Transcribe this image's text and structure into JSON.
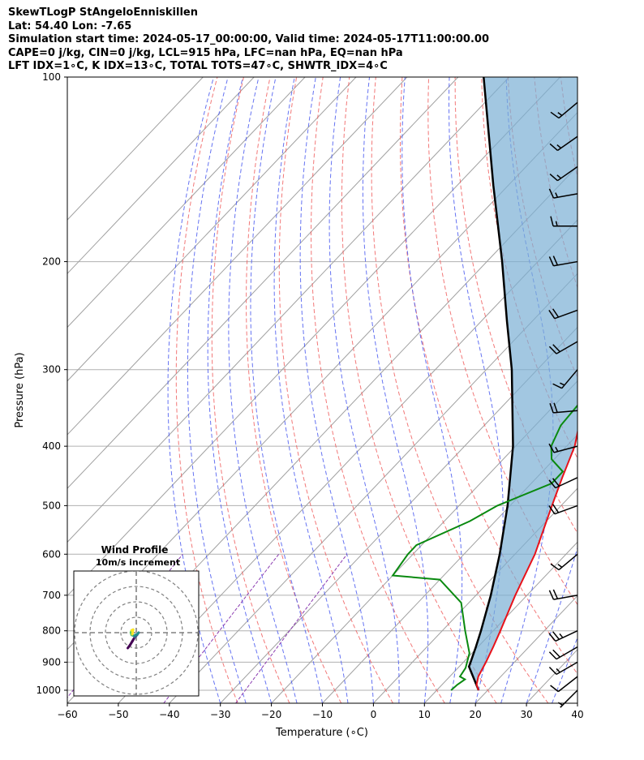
{
  "header": {
    "line1": "SkewTLogP StAngeloEnniskillen",
    "line2": "Lat: 54.40   Lon: -7.65",
    "line3": "Simulation start time: 2024-05-17_00:00:00, Valid time: 2024-05-17T11:00:00.00",
    "line4": "CAPE=0 j/kg, CIN=0 j/kg, LCL=915 hPa, LFC=nan hPa, EQ=nan hPa",
    "line5": "LFT IDX=1∘C, K IDX=13∘C, TOTAL TOTS=47∘C, SHWTR_IDX=4∘C"
  },
  "colors": {
    "temperature": "#e8121a",
    "dewpoint": "#0a8a10",
    "parcel": "#000000",
    "cape_fill": "#7bafd4",
    "dry_adiabat": "#f06060",
    "moist_adiabat": "#4a5af0",
    "isotherm": "#a0a0a0",
    "mixing_ratio": "#8a3ab0"
  },
  "chart_data": {
    "type": "line",
    "xlabel": "Temperature (∘C)",
    "ylabel": "Pressure (hPa)",
    "xlim": [
      -60,
      40
    ],
    "ylim": [
      1050,
      100
    ],
    "x_ticks": [
      -60,
      -50,
      -40,
      -30,
      -20,
      -10,
      0,
      10,
      20,
      30,
      40
    ],
    "y_ticks": [
      1000,
      900,
      800,
      700,
      600,
      500,
      400,
      300,
      200,
      100
    ],
    "grid": true,
    "series": [
      {
        "name": "temperature",
        "points": [
          [
            1000,
            18.2
          ],
          [
            980,
            16.8
          ],
          [
            950,
            15.6
          ],
          [
            925,
            15.0
          ],
          [
            900,
            14.4
          ],
          [
            850,
            13.0
          ],
          [
            800,
            11.4
          ],
          [
            700,
            7.7
          ],
          [
            600,
            3.9
          ],
          [
            500,
            -1.8
          ],
          [
            450,
            -5.0
          ],
          [
            400,
            -8.4
          ],
          [
            350,
            -13.6
          ],
          [
            300,
            -18.5
          ],
          [
            275,
            -21.0
          ],
          [
            260,
            -23.5
          ],
          [
            240,
            -28.0
          ],
          [
            220,
            -31.0
          ],
          [
            200,
            -33.0
          ],
          [
            180,
            -36.0
          ],
          [
            160,
            -39.5
          ],
          [
            140,
            -45.5
          ],
          [
            130,
            -50.0
          ],
          [
            120,
            -53.0
          ],
          [
            110,
            -55.0
          ],
          [
            100,
            -57.0
          ]
        ]
      },
      {
        "name": "dewpoint",
        "points": [
          [
            1000,
            12.8
          ],
          [
            980,
            13.0
          ],
          [
            960,
            13.5
          ],
          [
            950,
            12.0
          ],
          [
            920,
            11.5
          ],
          [
            870,
            9.5
          ],
          [
            800,
            4.5
          ],
          [
            720,
            -1.5
          ],
          [
            660,
            -10.0
          ],
          [
            650,
            -20.0
          ],
          [
            600,
            -21.0
          ],
          [
            580,
            -21.0
          ],
          [
            530,
            -15.0
          ],
          [
            500,
            -12.5
          ],
          [
            460,
            -6.0
          ],
          [
            440,
            -6.0
          ],
          [
            420,
            -10.5
          ],
          [
            400,
            -13.0
          ],
          [
            370,
            -15.0
          ],
          [
            340,
            -15.5
          ],
          [
            300,
            -18.0
          ],
          [
            280,
            -18.5
          ],
          [
            250,
            -20.5
          ],
          [
            220,
            -22.5
          ],
          [
            200,
            -24.0
          ],
          [
            180,
            -27.0
          ],
          [
            165,
            -31.0
          ],
          [
            155,
            -37.0
          ],
          [
            145,
            -40.0
          ],
          [
            130,
            -44.0
          ],
          [
            115,
            -50.0
          ],
          [
            100,
            -56.0
          ]
        ]
      },
      {
        "name": "parcel",
        "points": [
          [
            1000,
            18.2
          ],
          [
            915,
            11.9
          ],
          [
            900,
            11.4
          ],
          [
            850,
            9.6
          ],
          [
            800,
            7.6
          ],
          [
            700,
            2.9
          ],
          [
            600,
            -3.0
          ],
          [
            500,
            -10.5
          ],
          [
            400,
            -20.5
          ],
          [
            300,
            -35.0
          ],
          [
            250,
            -45.0
          ],
          [
            200,
            -57.0
          ],
          [
            150,
            -73.0
          ],
          [
            100,
            -95.0
          ]
        ]
      }
    ],
    "wind_barbs": [
      {
        "p": 1000,
        "dir": 225,
        "spd": 5
      },
      {
        "p": 950,
        "dir": 232,
        "spd": 10
      },
      {
        "p": 900,
        "dir": 240,
        "spd": 15
      },
      {
        "p": 850,
        "dir": 240,
        "spd": 20
      },
      {
        "p": 800,
        "dir": 245,
        "spd": 25
      },
      {
        "p": 700,
        "dir": 260,
        "spd": 20
      },
      {
        "p": 600,
        "dir": 230,
        "spd": 15
      },
      {
        "p": 500,
        "dir": 250,
        "spd": 20
      },
      {
        "p": 450,
        "dir": 245,
        "spd": 20
      },
      {
        "p": 400,
        "dir": 255,
        "spd": 15
      },
      {
        "p": 350,
        "dir": 265,
        "spd": 20
      },
      {
        "p": 300,
        "dir": 220,
        "spd": 15
      },
      {
        "p": 270,
        "dir": 240,
        "spd": 20
      },
      {
        "p": 240,
        "dir": 250,
        "spd": 20
      },
      {
        "p": 200,
        "dir": 260,
        "spd": 20
      },
      {
        "p": 175,
        "dir": 270,
        "spd": 15
      },
      {
        "p": 155,
        "dir": 260,
        "spd": 15
      },
      {
        "p": 140,
        "dir": 235,
        "spd": 15
      },
      {
        "p": 125,
        "dir": 235,
        "spd": 15
      },
      {
        "p": 110,
        "dir": 230,
        "spd": 15
      }
    ],
    "hodograph": {
      "title": "Wind Profile",
      "subtitle": "10m/s increment",
      "rings": [
        10,
        20,
        30,
        40
      ],
      "points": [
        [
          -5.5,
          -10.0
        ],
        [
          -4.0,
          -8.0
        ],
        [
          -2.5,
          -5.5
        ],
        [
          -1.0,
          -3.0
        ],
        [
          0.5,
          -1.5
        ],
        [
          1.5,
          0.0
        ],
        [
          0.5,
          -1.0
        ],
        [
          -1.5,
          -2.0
        ],
        [
          -3.0,
          -1.5
        ],
        [
          -3.5,
          0.0
        ],
        [
          -3.0,
          1.5
        ],
        [
          -2.0,
          2.0
        ],
        [
          -2.5,
          -1.0
        ]
      ]
    }
  }
}
